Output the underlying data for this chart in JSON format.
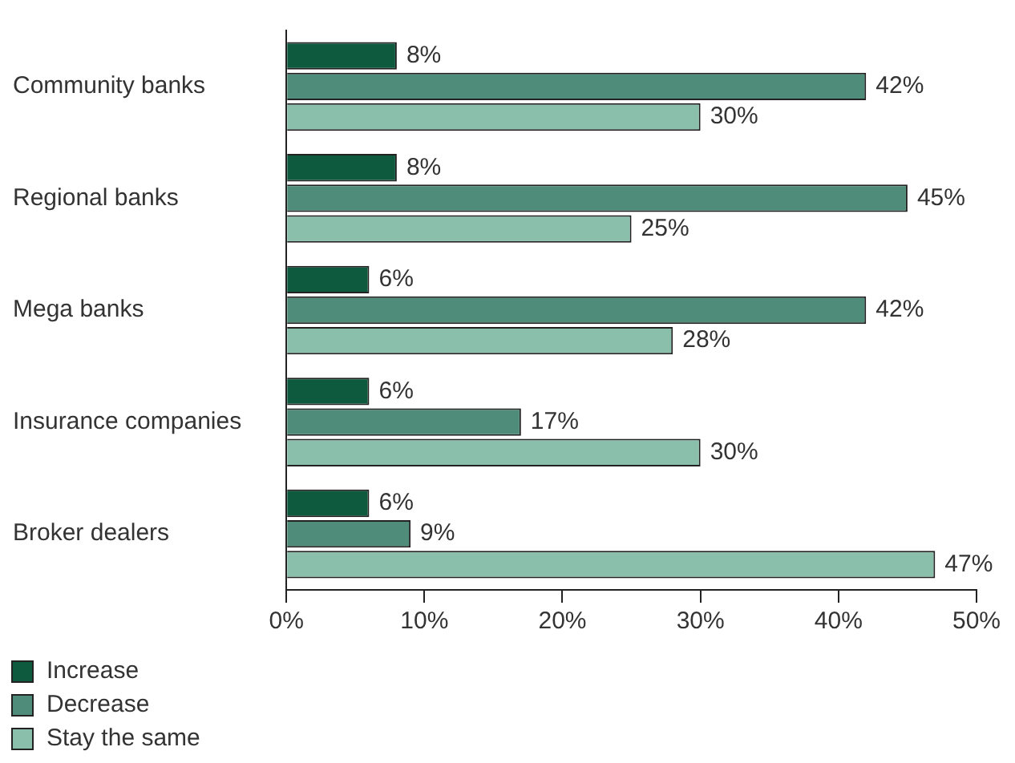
{
  "chart_data": {
    "type": "bar",
    "orientation": "horizontal",
    "categories": [
      "Community banks",
      "Regional banks",
      "Mega banks",
      "Insurance companies",
      "Broker dealers"
    ],
    "series": [
      {
        "name": "Increase",
        "color": "#0d5a3e",
        "values": [
          8,
          8,
          6,
          6,
          6
        ],
        "value_labels": [
          "8%",
          "8%",
          "6%",
          "6%",
          "6%"
        ]
      },
      {
        "name": "Decrease",
        "color": "#4f8d7a",
        "values": [
          42,
          45,
          42,
          17,
          9
        ],
        "value_labels": [
          "42%",
          "45%",
          "42%",
          "17%",
          "9%"
        ]
      },
      {
        "name": "Stay the same",
        "color": "#8abfab",
        "values": [
          30,
          25,
          28,
          30,
          47
        ],
        "value_labels": [
          "30%",
          "25%",
          "28%",
          "30%",
          "47%"
        ]
      }
    ],
    "xlim": [
      0,
      50
    ],
    "xticks": [
      {
        "value": 0,
        "label": "0%"
      },
      {
        "value": 10,
        "label": "10%"
      },
      {
        "value": 20,
        "label": "20%"
      },
      {
        "value": 30,
        "label": "30%"
      },
      {
        "value": 40,
        "label": "40%"
      },
      {
        "value": 50,
        "label": "50%"
      }
    ],
    "grid": false,
    "legend": "bottom left"
  }
}
